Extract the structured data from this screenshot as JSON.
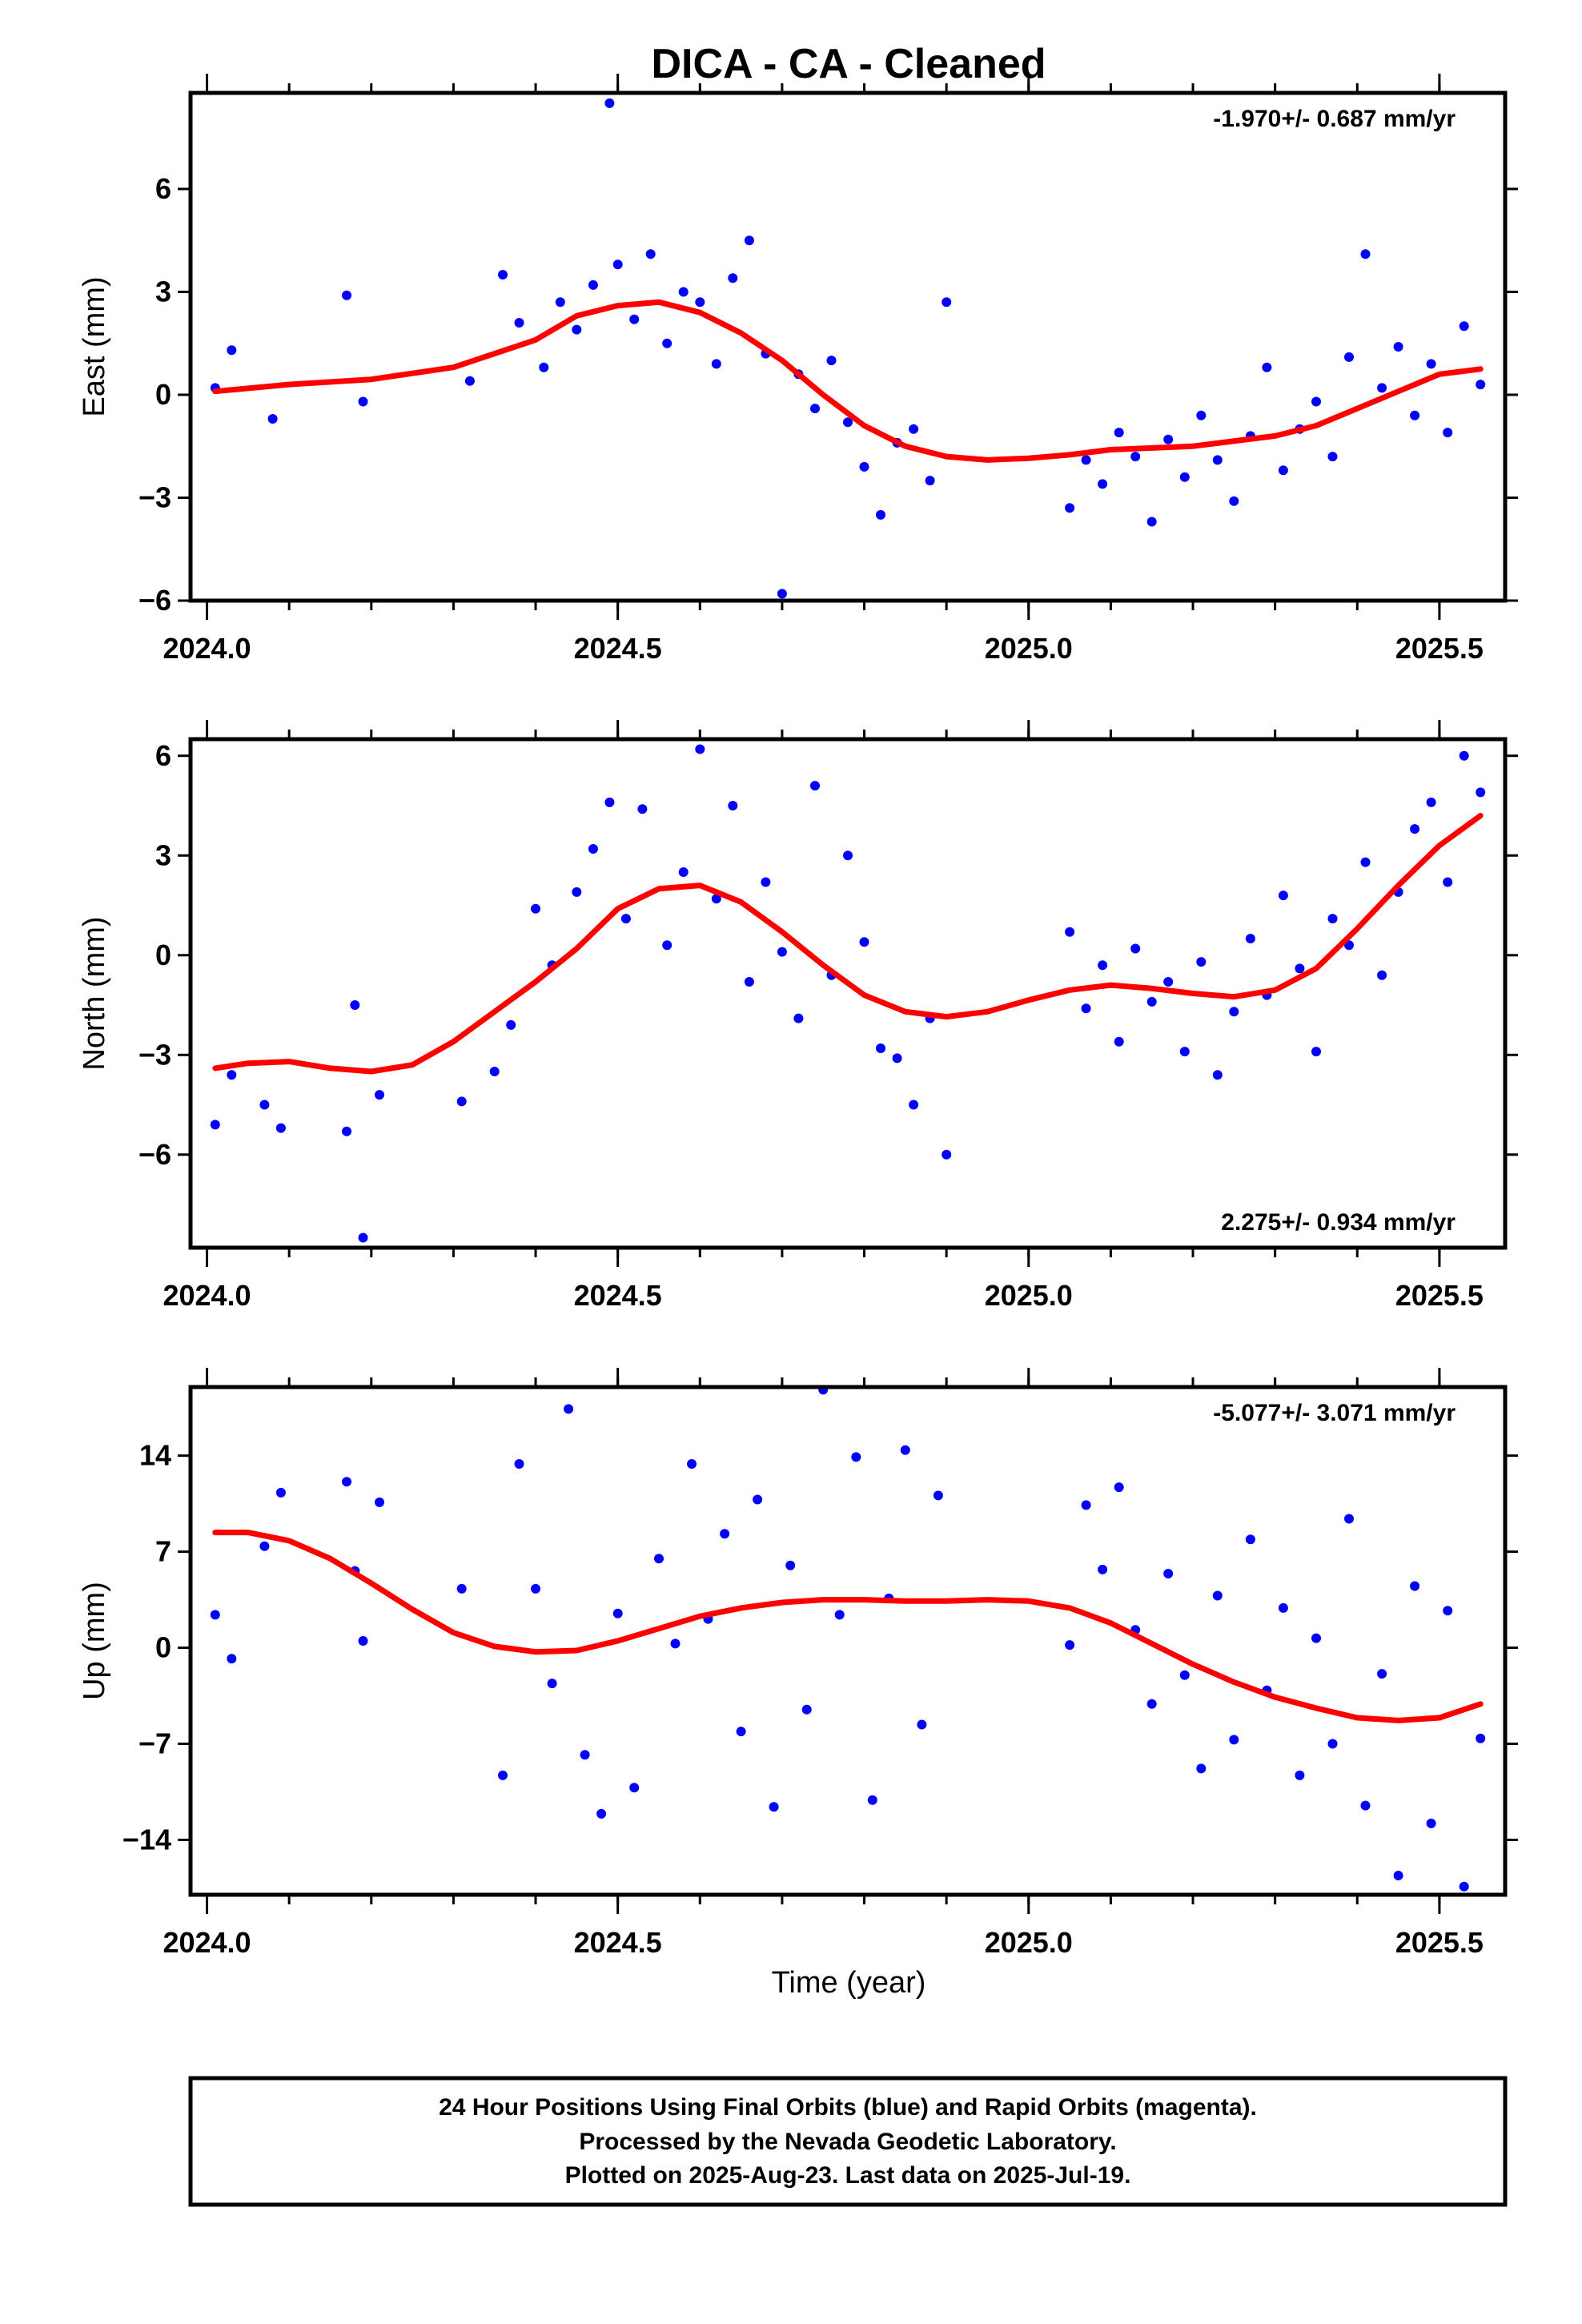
{
  "title": "DICA  - CA - Cleaned",
  "x_axis_label": "Time (year)",
  "footer": {
    "line1": "24 Hour Positions Using Final Orbits (blue) and Rapid Orbits (magenta).",
    "line2": "Processed by the Nevada Geodetic Laboratory.",
    "line3": "Plotted on 2025-Aug-23. Last data on 2025-Jul-19."
  },
  "colors": {
    "points": "#0000ff",
    "fit": "#ff0000",
    "axes": "#000000"
  },
  "chart_data": [
    {
      "type": "scatter",
      "panel": "east",
      "ylabel": "East (mm)",
      "rate_label": "-1.970+/- 0.687 mm/yr",
      "rate_position": "top-right",
      "xlim": [
        2023.98,
        2025.58
      ],
      "ylim": [
        -6,
        8.8
      ],
      "x_ticks": [
        "2024.0",
        "2024.5",
        "2025.0",
        "2025.5"
      ],
      "x_tick_values": [
        2024.0,
        2024.5,
        2025.0,
        2025.5
      ],
      "y_ticks": [
        "−6",
        "−3",
        "0",
        "3",
        "6"
      ],
      "y_tick_values": [
        -6,
        -3,
        0,
        3,
        6
      ],
      "fit_x": [
        2024.01,
        2024.1,
        2024.2,
        2024.3,
        2024.4,
        2024.45,
        2024.5,
        2024.55,
        2024.6,
        2024.65,
        2024.7,
        2024.75,
        2024.8,
        2024.85,
        2024.9,
        2024.95,
        2025.0,
        2025.05,
        2025.1,
        2025.2,
        2025.3,
        2025.35,
        2025.4,
        2025.45,
        2025.5,
        2025.55
      ],
      "fit_y": [
        0.1,
        0.3,
        0.45,
        0.8,
        1.6,
        2.3,
        2.6,
        2.7,
        2.4,
        1.8,
        1.0,
        0.0,
        -0.9,
        -1.5,
        -1.8,
        -1.9,
        -1.85,
        -1.75,
        -1.6,
        -1.5,
        -1.2,
        -0.9,
        -0.4,
        0.1,
        0.6,
        0.75
      ],
      "points_x": [
        2024.01,
        2024.03,
        2024.08,
        2024.17,
        2024.19,
        2024.32,
        2024.36,
        2024.38,
        2024.41,
        2024.43,
        2024.45,
        2024.47,
        2024.49,
        2024.5,
        2024.52,
        2024.54,
        2024.56,
        2024.58,
        2024.6,
        2024.62,
        2024.64,
        2024.66,
        2024.68,
        2024.7,
        2024.72,
        2024.74,
        2024.76,
        2024.78,
        2024.8,
        2024.82,
        2024.84,
        2024.86,
        2024.88,
        2024.9,
        2025.05,
        2025.07,
        2025.09,
        2025.11,
        2025.13,
        2025.15,
        2025.17,
        2025.19,
        2025.21,
        2025.23,
        2025.25,
        2025.27,
        2025.29,
        2025.31,
        2025.33,
        2025.35,
        2025.37,
        2025.39,
        2025.41,
        2025.43,
        2025.45,
        2025.47,
        2025.49,
        2025.51,
        2025.53,
        2025.55
      ],
      "points_y": [
        0.2,
        1.3,
        -0.7,
        2.9,
        -0.2,
        0.4,
        3.5,
        2.1,
        0.8,
        2.7,
        1.9,
        3.2,
        8.5,
        3.8,
        2.2,
        4.1,
        1.5,
        3.0,
        2.7,
        0.9,
        3.4,
        4.5,
        1.2,
        -5.8,
        0.6,
        -0.4,
        1.0,
        -0.8,
        -2.1,
        -3.5,
        -1.4,
        -1.0,
        -2.5,
        2.7,
        -3.3,
        -1.9,
        -2.6,
        -1.1,
        -1.8,
        -3.7,
        -1.3,
        -2.4,
        -0.6,
        -1.9,
        -3.1,
        -1.2,
        0.8,
        -2.2,
        -1.0,
        -0.2,
        -1.8,
        1.1,
        4.1,
        0.2,
        1.4,
        -0.6,
        0.9,
        -1.1,
        2.0,
        0.3
      ]
    },
    {
      "type": "scatter",
      "panel": "north",
      "ylabel": "North (mm)",
      "rate_label": "2.275+/- 0.934 mm/yr",
      "rate_position": "bottom-right",
      "xlim": [
        2023.98,
        2025.58
      ],
      "ylim": [
        -8.8,
        6.5
      ],
      "x_ticks": [
        "2024.0",
        "2024.5",
        "2025.0",
        "2025.5"
      ],
      "x_tick_values": [
        2024.0,
        2024.5,
        2025.0,
        2025.5
      ],
      "y_ticks": [
        "−6",
        "−3",
        "0",
        "3",
        "6"
      ],
      "y_tick_values": [
        -6,
        -3,
        0,
        3,
        6
      ],
      "fit_x": [
        2024.01,
        2024.05,
        2024.1,
        2024.15,
        2024.2,
        2024.25,
        2024.3,
        2024.35,
        2024.4,
        2024.45,
        2024.5,
        2024.55,
        2024.6,
        2024.65,
        2024.7,
        2024.75,
        2024.8,
        2024.85,
        2024.9,
        2024.95,
        2025.0,
        2025.05,
        2025.1,
        2025.15,
        2025.2,
        2025.25,
        2025.3,
        2025.35,
        2025.4,
        2025.45,
        2025.5,
        2025.55
      ],
      "fit_y": [
        -3.4,
        -3.25,
        -3.2,
        -3.4,
        -3.5,
        -3.3,
        -2.6,
        -1.7,
        -0.8,
        0.2,
        1.4,
        2.0,
        2.1,
        1.6,
        0.7,
        -0.3,
        -1.2,
        -1.7,
        -1.85,
        -1.7,
        -1.35,
        -1.05,
        -0.9,
        -1.0,
        -1.15,
        -1.25,
        -1.05,
        -0.4,
        0.8,
        2.1,
        3.3,
        4.2
      ],
      "points_x": [
        2024.01,
        2024.03,
        2024.07,
        2024.09,
        2024.17,
        2024.18,
        2024.19,
        2024.21,
        2024.31,
        2024.35,
        2024.37,
        2024.4,
        2024.42,
        2024.45,
        2024.47,
        2024.49,
        2024.51,
        2024.53,
        2024.56,
        2024.58,
        2024.6,
        2024.62,
        2024.64,
        2024.66,
        2024.68,
        2024.7,
        2024.72,
        2024.74,
        2024.76,
        2024.78,
        2024.8,
        2024.82,
        2024.84,
        2024.86,
        2024.88,
        2024.9,
        2025.05,
        2025.07,
        2025.09,
        2025.11,
        2025.13,
        2025.15,
        2025.17,
        2025.19,
        2025.21,
        2025.23,
        2025.25,
        2025.27,
        2025.29,
        2025.31,
        2025.33,
        2025.35,
        2025.37,
        2025.39,
        2025.41,
        2025.43,
        2025.45,
        2025.47,
        2025.49,
        2025.51,
        2025.53,
        2025.55
      ],
      "points_y": [
        -5.1,
        -3.6,
        -4.5,
        -5.2,
        -5.3,
        -1.5,
        -8.5,
        -4.2,
        -4.4,
        -3.5,
        -2.1,
        1.4,
        -0.3,
        1.9,
        3.2,
        4.6,
        1.1,
        4.4,
        0.3,
        2.5,
        6.2,
        1.7,
        4.5,
        -0.8,
        2.2,
        0.1,
        -1.9,
        5.1,
        -0.6,
        3.0,
        0.4,
        -2.8,
        -3.1,
        -4.5,
        -1.9,
        -6.0,
        0.7,
        -1.6,
        -0.3,
        -2.6,
        0.2,
        -1.4,
        -0.8,
        -2.9,
        -0.2,
        -3.6,
        -1.7,
        0.5,
        -1.2,
        1.8,
        -0.4,
        -2.9,
        1.1,
        0.3,
        2.8,
        -0.6,
        1.9,
        3.8,
        4.6,
        2.2,
        6.0,
        4.9
      ]
    },
    {
      "type": "scatter",
      "panel": "up",
      "ylabel": "Up (mm)",
      "rate_label": "-5.077+/- 3.071 mm/yr",
      "rate_position": "top-right",
      "xlim": [
        2023.98,
        2025.58
      ],
      "ylim": [
        -18,
        19
      ],
      "x_ticks": [
        "2024.0",
        "2024.5",
        "2025.0",
        "2025.5"
      ],
      "x_tick_values": [
        2024.0,
        2024.5,
        2025.0,
        2025.5
      ],
      "y_ticks": [
        "−14",
        "−7",
        "0",
        "7",
        "14"
      ],
      "y_tick_values": [
        -14,
        -7,
        0,
        7,
        14
      ],
      "fit_x": [
        2024.01,
        2024.05,
        2024.1,
        2024.15,
        2024.2,
        2024.25,
        2024.3,
        2024.35,
        2024.4,
        2024.45,
        2024.5,
        2024.55,
        2024.6,
        2024.65,
        2024.7,
        2024.75,
        2024.8,
        2024.85,
        2024.9,
        2024.95,
        2025.0,
        2025.05,
        2025.1,
        2025.15,
        2025.2,
        2025.25,
        2025.3,
        2025.35,
        2025.4,
        2025.45,
        2025.5,
        2025.55
      ],
      "fit_y": [
        8.4,
        8.4,
        7.8,
        6.5,
        4.7,
        2.8,
        1.1,
        0.1,
        -0.3,
        -0.2,
        0.5,
        1.4,
        2.3,
        2.9,
        3.3,
        3.5,
        3.5,
        3.4,
        3.4,
        3.5,
        3.4,
        2.9,
        1.8,
        0.3,
        -1.2,
        -2.5,
        -3.6,
        -4.4,
        -5.1,
        -5.3,
        -5.1,
        -4.1
      ],
      "points_x": [
        2024.01,
        2024.03,
        2024.07,
        2024.09,
        2024.17,
        2024.18,
        2024.19,
        2024.21,
        2024.31,
        2024.36,
        2024.38,
        2024.4,
        2024.42,
        2024.44,
        2024.46,
        2024.48,
        2024.5,
        2024.52,
        2024.55,
        2024.57,
        2024.59,
        2024.61,
        2024.63,
        2024.65,
        2024.67,
        2024.69,
        2024.71,
        2024.73,
        2024.75,
        2024.77,
        2024.79,
        2024.81,
        2024.83,
        2024.85,
        2024.87,
        2024.89,
        2025.05,
        2025.07,
        2025.09,
        2025.11,
        2025.13,
        2025.15,
        2025.17,
        2025.19,
        2025.21,
        2025.23,
        2025.25,
        2025.27,
        2025.29,
        2025.31,
        2025.33,
        2025.35,
        2025.37,
        2025.39,
        2025.41,
        2025.43,
        2025.45,
        2025.47,
        2025.49,
        2025.51,
        2025.53,
        2025.55
      ],
      "points_y": [
        2.4,
        -0.8,
        7.4,
        11.3,
        12.1,
        5.6,
        0.5,
        10.6,
        4.3,
        -9.3,
        13.4,
        4.3,
        -2.6,
        17.4,
        -7.8,
        -12.1,
        2.5,
        -10.2,
        6.5,
        0.3,
        13.4,
        2.1,
        8.3,
        -6.1,
        10.8,
        -11.6,
        6.0,
        -4.5,
        18.8,
        2.4,
        13.9,
        -11.1,
        3.6,
        14.4,
        -5.6,
        11.1,
        0.2,
        10.4,
        5.7,
        11.7,
        1.3,
        -4.1,
        5.4,
        -2.0,
        -8.8,
        3.8,
        -6.7,
        7.9,
        -3.1,
        2.9,
        -9.3,
        0.7,
        -7.0,
        9.4,
        -11.5,
        -1.9,
        -16.6,
        4.5,
        -12.8,
        2.7,
        -17.4,
        -6.6
      ]
    }
  ]
}
